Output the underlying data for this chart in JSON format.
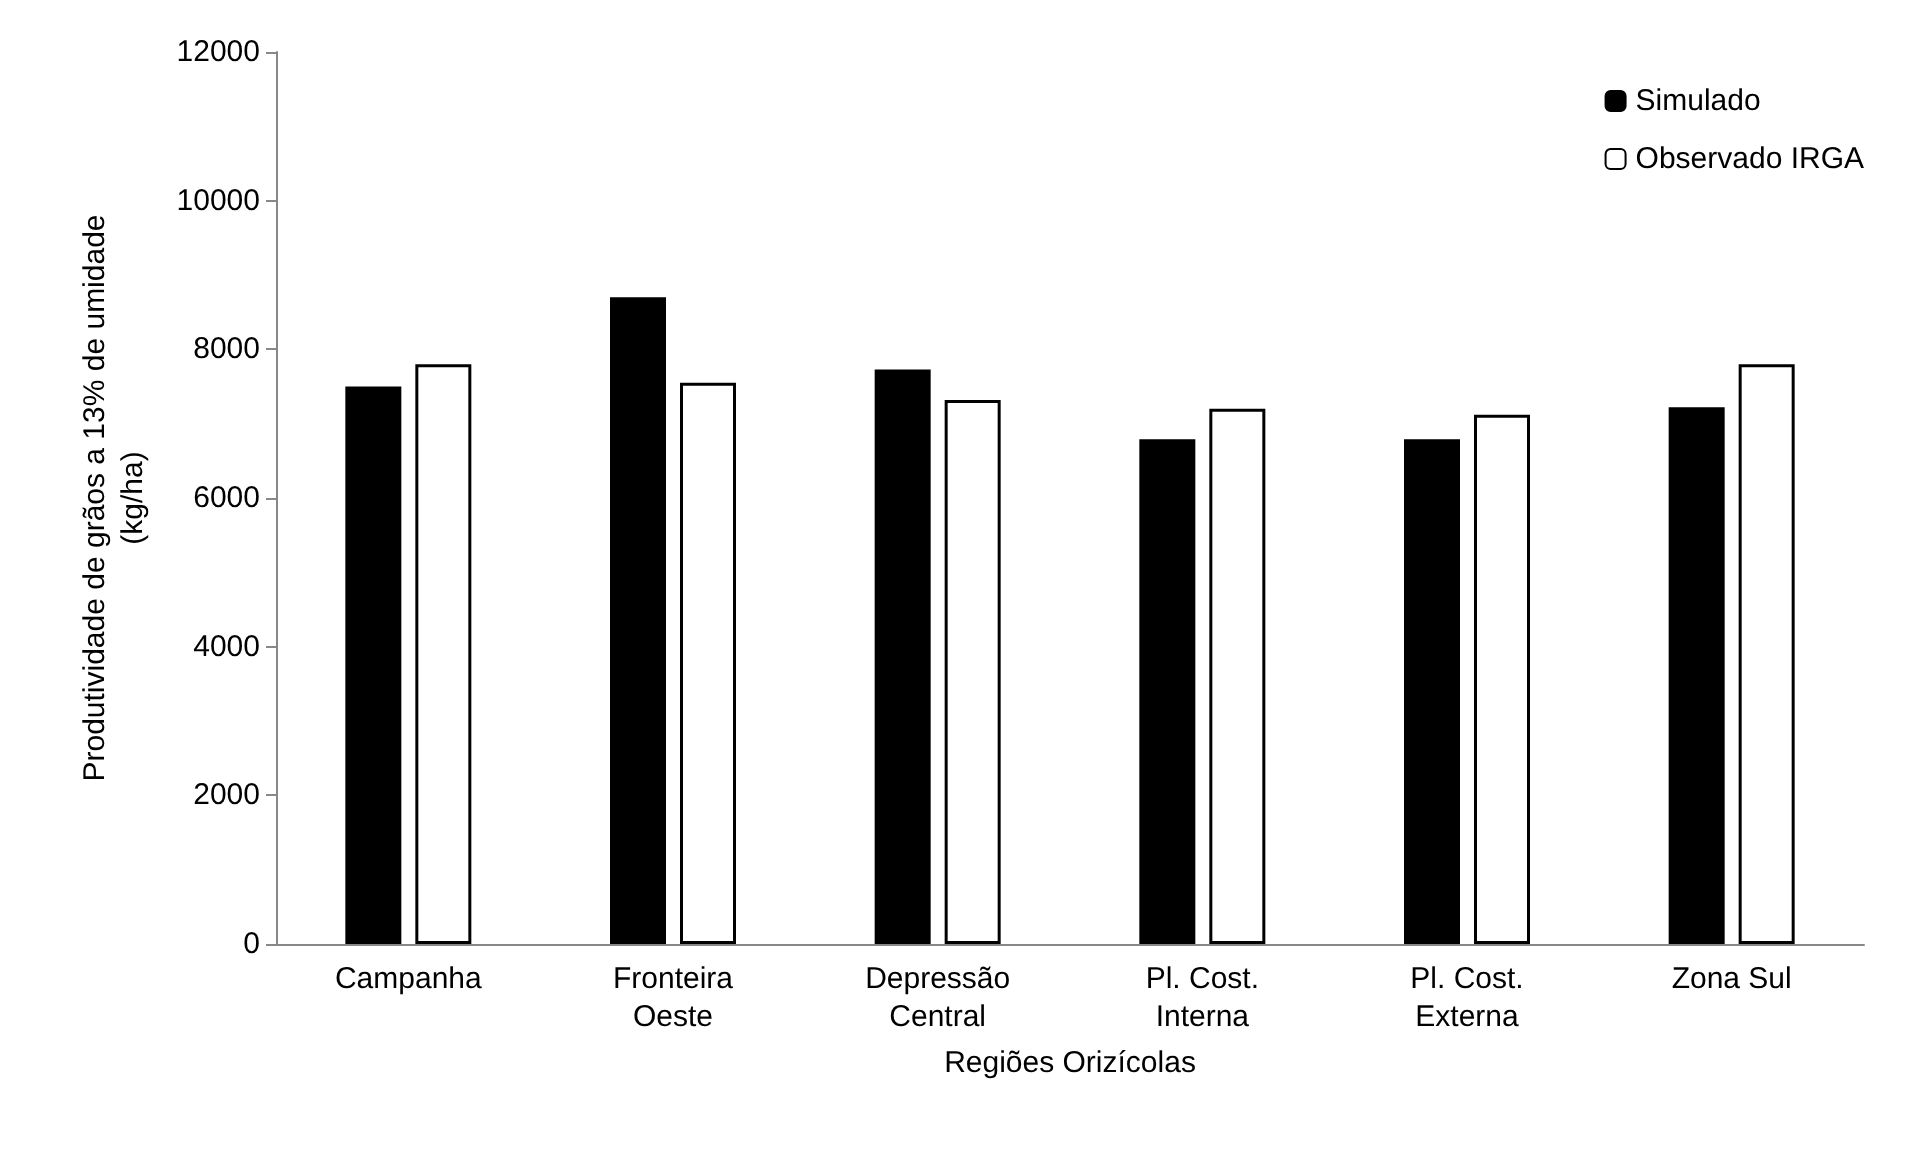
{
  "chart_data": {
    "type": "bar",
    "xlabel": "Regiões Orizícolas",
    "ylabel": "Produtividade de grãos a 13% de umidade\n(kg/ha)",
    "categories": [
      "Campanha",
      "Fronteira\nOeste",
      "Depressão\nCentral",
      "Pl. Cost.\nInterna",
      "Pl. Cost.\nExterna",
      "Zona Sul"
    ],
    "series": [
      {
        "name": "Simulado",
        "color": "#000000",
        "values": [
          7500,
          8700,
          7730,
          6790,
          6790,
          7220
        ]
      },
      {
        "name": "Observado IRGA",
        "color": "#ffffff",
        "values": [
          7800,
          7550,
          7320,
          7200,
          7120,
          7800
        ]
      }
    ],
    "ylim": [
      0,
      12000
    ],
    "yticks": [
      0,
      2000,
      4000,
      6000,
      8000,
      10000,
      12000
    ],
    "grid": false,
    "legend": "top right"
  }
}
